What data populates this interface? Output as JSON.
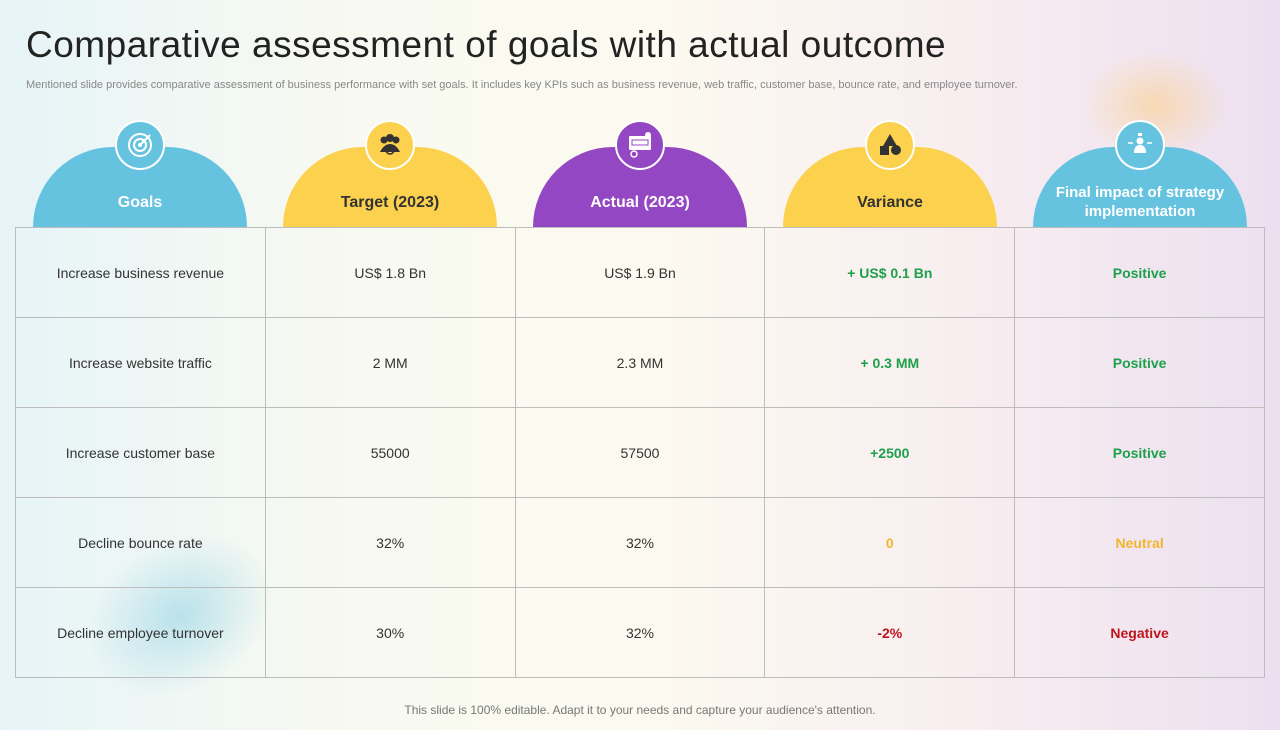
{
  "title": "Comparative assessment of goals with actual outcome",
  "subtitle": "Mentioned slide provides comparative assessment of business performance with set goals. It includes key KPIs such as business revenue, web traffic, customer base, bounce rate, and employee turnover.",
  "colors": {
    "blue": "#66c3e0",
    "yellow": "#fcd14e",
    "purple": "#9447c2",
    "positive": "#1ca04a",
    "neutral": "#f2b52e",
    "negative": "#c0141c"
  },
  "columns": [
    {
      "label": "Goals",
      "icon": "target-icon",
      "color": "#66c3e0"
    },
    {
      "label": "Target (2023)",
      "icon": "team-icon",
      "color": "#fcd14e"
    },
    {
      "label": "Actual (2023)",
      "icon": "actual-board-icon",
      "color": "#9447c2"
    },
    {
      "label": "Variance",
      "icon": "shapes-icon",
      "color": "#fcd14e"
    },
    {
      "label": "Final impact of strategy  implementation",
      "icon": "presenter-icon",
      "color": "#66c3e0"
    }
  ],
  "rows": [
    {
      "goal": "Increase business revenue",
      "target": "US$ 1.8 Bn",
      "actual": "US$ 1.9 Bn",
      "variance": "+ US$ 0.1 Bn",
      "impact": "Positive"
    },
    {
      "goal": "Increase website traffic",
      "target": "2 MM",
      "actual": "2.3 MM",
      "variance": "+ 0.3 MM",
      "impact": "Positive"
    },
    {
      "goal": "Increase customer base",
      "target": "55000",
      "actual": "57500",
      "variance": "+2500",
      "impact": "Positive"
    },
    {
      "goal": "Decline bounce rate",
      "target": "32%",
      "actual": "32%",
      "variance": "0",
      "impact": "Neutral"
    },
    {
      "goal": "Decline employee turnover",
      "target": "30%",
      "actual": "32%",
      "variance": "-2%",
      "impact": "Negative"
    }
  ],
  "footer": "This slide is 100% editable. Adapt it to your needs and capture your audience's attention."
}
